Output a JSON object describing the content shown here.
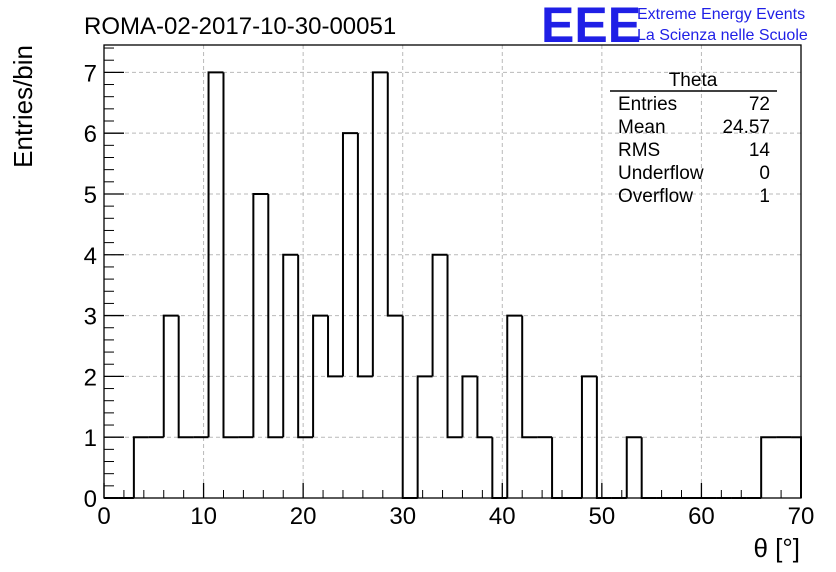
{
  "title": "ROMA-02-2017-10-30-00051",
  "logo": {
    "letters": "EEE",
    "line1": "Extreme Energy Events",
    "line2": "La Scienza nelle Scuole",
    "color": "#1f1fe6"
  },
  "stats": {
    "name": "Theta",
    "rows": [
      {
        "label": "Entries",
        "value": "72"
      },
      {
        "label": "Mean",
        "value": "24.57"
      },
      {
        "label": "RMS",
        "value": "14"
      },
      {
        "label": "Underflow",
        "value": "0"
      },
      {
        "label": "Overflow",
        "value": "1"
      }
    ]
  },
  "chart_data": {
    "type": "bar",
    "title": "ROMA-02-2017-10-30-00051",
    "xlabel": "θ [°]",
    "ylabel": "Entries/bin",
    "xlim": [
      0,
      70
    ],
    "ylim": [
      0,
      7.45
    ],
    "xticks": [
      0,
      10,
      20,
      30,
      40,
      50,
      60,
      70
    ],
    "yticks": [
      0,
      1,
      2,
      3,
      4,
      5,
      6,
      7
    ],
    "grid": true,
    "bin_edges": [
      0,
      1.5,
      3,
      4.5,
      6,
      7.5,
      9,
      10.5,
      12,
      13.5,
      15,
      16.5,
      18,
      19.5,
      21,
      22.5,
      24,
      25.5,
      27,
      28.5,
      30,
      31.5,
      33,
      34.5,
      36,
      37.5,
      39,
      40.5,
      42,
      43.5,
      45,
      46.5,
      48,
      49.5,
      51,
      52.5,
      54,
      55.5,
      57,
      58.5,
      60,
      61.5,
      63,
      64.5,
      66,
      67.5,
      69,
      70
    ],
    "values": [
      0,
      0,
      1,
      1,
      3,
      1,
      1,
      7,
      1,
      1,
      5,
      1,
      4,
      1,
      3,
      2,
      6,
      2,
      7,
      3,
      0,
      2,
      4,
      1,
      2,
      1,
      0,
      3,
      1,
      1,
      0,
      0,
      2,
      0,
      0,
      1,
      0,
      0,
      0,
      0,
      0,
      0,
      0,
      0,
      1,
      1,
      1
    ],
    "color": "#000000"
  }
}
